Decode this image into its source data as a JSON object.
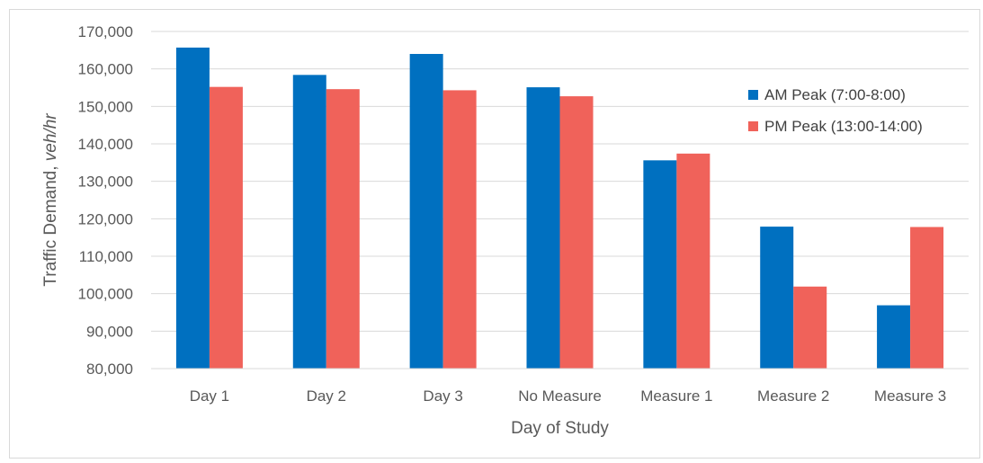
{
  "chart_data": {
    "type": "bar",
    "title": "",
    "xlabel": "Day of Study",
    "ylabel_main": "Traffic Demand, ",
    "ylabel_unit": "veh/hr",
    "categories": [
      "Day 1",
      "Day 2",
      "Day 3",
      "No Measure",
      "Measure 1",
      "Measure 2",
      "Measure 3"
    ],
    "series": [
      {
        "name": "AM Peak (7:00-8:00)",
        "color": "#0070c0",
        "values": [
          165700,
          158400,
          164000,
          155100,
          135600,
          117900,
          96900
        ]
      },
      {
        "name": "PM Peak (13:00-14:00)",
        "color": "#f0625a",
        "values": [
          155200,
          154600,
          154300,
          152700,
          137400,
          101900,
          117800
        ]
      }
    ],
    "ylim": [
      80000,
      170000
    ],
    "yticks": [
      "80,000",
      "90,000",
      "100,000",
      "110,000",
      "120,000",
      "130,000",
      "140,000",
      "150,000",
      "160,000",
      "170,000"
    ],
    "ytick_values": [
      80000,
      90000,
      100000,
      110000,
      120000,
      130000,
      140000,
      150000,
      160000,
      170000
    ],
    "grid": true,
    "legend_position": "right"
  }
}
